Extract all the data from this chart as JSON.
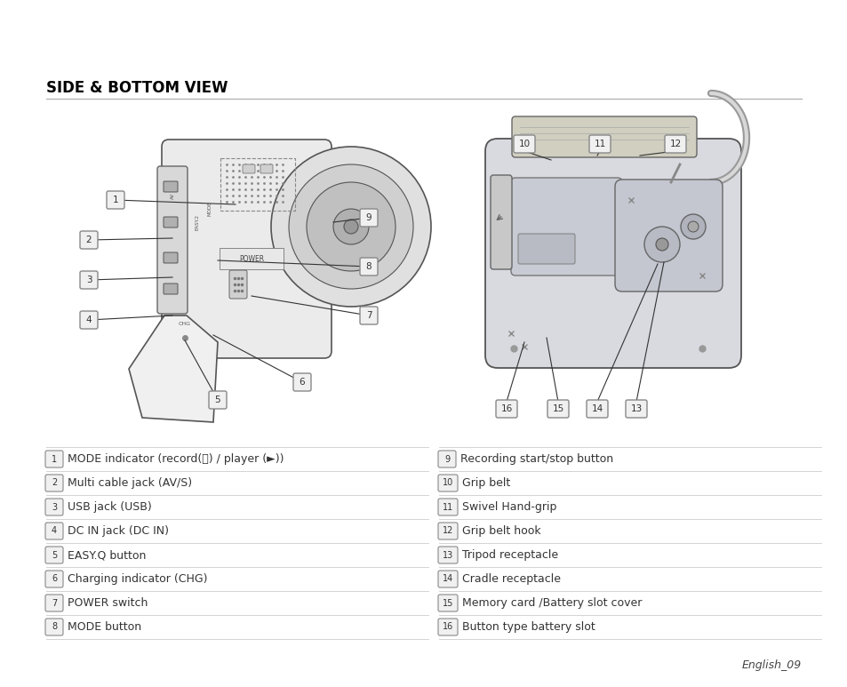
{
  "title": "SIDE & BOTTOM VIEW",
  "bg": "#ffffff",
  "title_color": "#000000",
  "title_fs": 12,
  "badge_edge": "#888888",
  "badge_face": "#f0f0f0",
  "badge_text": "#333333",
  "line_color": "#cccccc",
  "text_color": "#333333",
  "callout_color": "#333333",
  "item_fs": 9,
  "footer": "English_09",
  "items_left": [
    {
      "num": "1",
      "text": "MODE indicator (record(🎥) / player (►))"
    },
    {
      "num": "2",
      "text": "Multi cable jack (AV/S)"
    },
    {
      "num": "3",
      "text": "USB jack (USB)"
    },
    {
      "num": "4",
      "text": "DC IN jack (DC IN)"
    },
    {
      "num": "5",
      "text": "EASY.Q button"
    },
    {
      "num": "6",
      "text": "Charging indicator (CHG)"
    },
    {
      "num": "7",
      "text": "POWER switch"
    },
    {
      "num": "8",
      "text": "MODE button"
    }
  ],
  "items_right": [
    {
      "num": "9",
      "text": "Recording start/stop button"
    },
    {
      "num": "10",
      "text": "Grip belt"
    },
    {
      "num": "11",
      "text": "Swivel Hand-grip"
    },
    {
      "num": "12",
      "text": "Grip belt hook"
    },
    {
      "num": "13",
      "text": "Tripod receptacle"
    },
    {
      "num": "14",
      "text": "Cradle receptacle"
    },
    {
      "num": "15",
      "text": "Memory card /Battery slot cover"
    },
    {
      "num": "16",
      "text": "Button type battery slot"
    }
  ]
}
